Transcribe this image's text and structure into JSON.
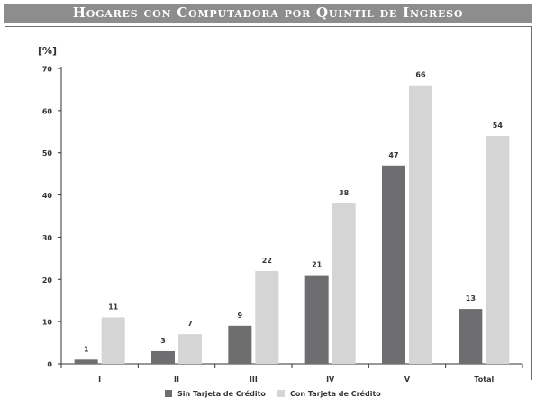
{
  "header": {
    "title": "Hogares con Computadora por Quintil de Ingreso"
  },
  "colors": {
    "title_bg": "#8d8d8d",
    "series_dark": "#6e6e70",
    "series_light": "#d5d5d5",
    "axis": "#333333"
  },
  "chart_data": {
    "type": "bar",
    "ylabel": "[%]",
    "xlabel": "",
    "ylim": [
      0,
      70
    ],
    "yticks": [
      "0",
      "10",
      "20",
      "30",
      "40",
      "50",
      "60",
      "70"
    ],
    "grid": false,
    "legend_position": "bottom",
    "categories": [
      "I",
      "II",
      "III",
      "IV",
      "V",
      "Total"
    ],
    "series": [
      {
        "name": "Sin Tarjeta de Crédito",
        "values": [
          1,
          3,
          9,
          21,
          47,
          13
        ],
        "labels": [
          "1",
          "3",
          "9",
          "21",
          "47",
          "13"
        ],
        "color": "#6e6e70"
      },
      {
        "name": "Con Tarjeta de Crédito",
        "values": [
          11,
          7,
          22,
          38,
          66,
          54
        ],
        "labels": [
          "11",
          "7",
          "22",
          "38",
          "66",
          "54"
        ],
        "color": "#d5d5d5"
      }
    ]
  }
}
